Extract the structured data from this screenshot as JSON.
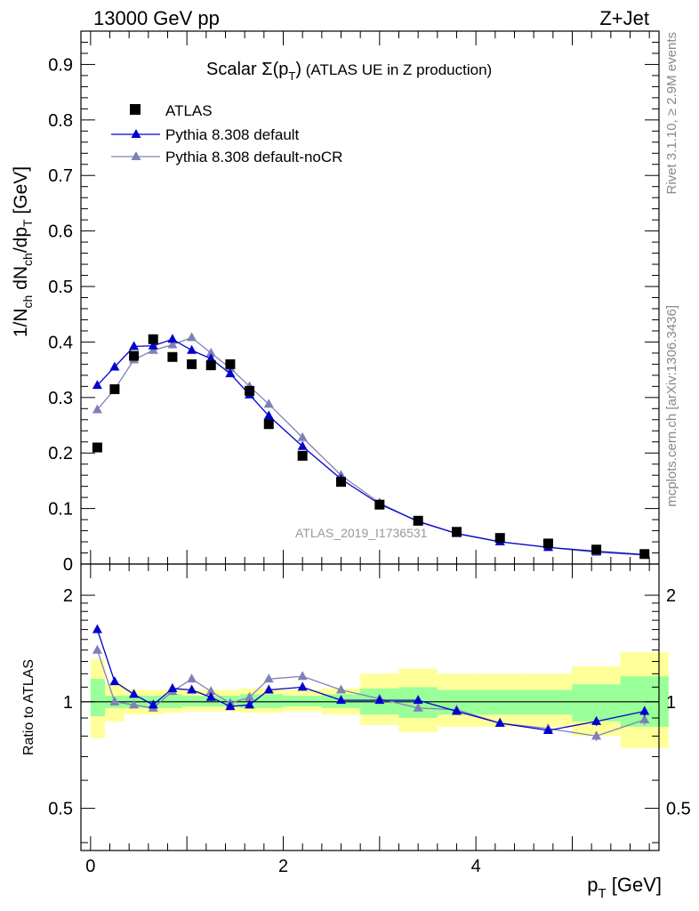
{
  "header": {
    "left": "13000 GeV pp",
    "right": "Z+Jet"
  },
  "title": {
    "prefix": "Scalar ",
    "sigma": "Σ(p",
    "sub": "T",
    "close": ")",
    "rest": " (ATLAS UE in Z production)"
  },
  "y_label_main": {
    "a": "1/N",
    "a_sub": "ch",
    "b": " dN",
    "b_sub": "ch",
    "c": "/dp",
    "c_sub": "T",
    "d": " [GeV]"
  },
  "y_label_ratio": "Ratio to ATLAS",
  "x_label": {
    "a": "p",
    "sub": "T",
    "b": " [GeV]"
  },
  "side_labels": {
    "top": "Rivet 3.1.10, ≥ 2.9M events",
    "bottom": "mcplots.cern.ch [arXiv:1306.3436]"
  },
  "watermark": "ATLAS_2019_I1736531",
  "legend": [
    {
      "label": "ATLAS",
      "marker": "square",
      "color": "#000000"
    },
    {
      "label": "Pythia 8.308 default",
      "marker": "triangle",
      "color": "#0000cc"
    },
    {
      "label": "Pythia 8.308 default-noCR",
      "marker": "triangle",
      "color": "#8080b8"
    }
  ],
  "chart_data": {
    "type": "line",
    "x_range": [
      -0.1,
      5.9
    ],
    "main": {
      "ylim": [
        0,
        0.96
      ],
      "yticks": [
        0,
        0.1,
        0.2,
        0.3,
        0.4,
        0.5,
        0.6,
        0.7,
        0.8,
        0.9
      ],
      "ytick_labels": [
        "0",
        "0.1",
        "0.2",
        "0.3",
        "0.4",
        "0.5",
        "0.6",
        "0.7",
        "0.8",
        "0.9"
      ]
    },
    "ratio": {
      "log_scale": true,
      "ylim": [
        0.38,
        2.45
      ],
      "yticks": [
        0.5,
        1,
        2
      ],
      "ytick_labels": [
        "0.5",
        "1",
        "2"
      ]
    },
    "xticks": [
      0,
      2,
      4
    ],
    "xtick_labels": [
      "0",
      "2",
      "4"
    ],
    "x": [
      0.07,
      0.25,
      0.45,
      0.65,
      0.85,
      1.05,
      1.25,
      1.45,
      1.65,
      1.85,
      2.2,
      2.6,
      3.0,
      3.4,
      3.8,
      4.25,
      4.75,
      5.25,
      5.75
    ],
    "bin_edges": [
      0.0,
      0.15,
      0.35,
      0.55,
      0.75,
      0.95,
      1.15,
      1.35,
      1.55,
      1.75,
      2.0,
      2.4,
      2.8,
      3.2,
      3.6,
      4.0,
      4.5,
      5.0,
      5.5,
      6.0
    ],
    "series": [
      {
        "name": "ATLAS",
        "color": "#000000",
        "values": [
          0.21,
          0.315,
          0.375,
          0.405,
          0.373,
          0.36,
          0.358,
          0.36,
          0.312,
          0.252,
          0.195,
          0.148,
          0.107,
          0.078,
          0.058,
          0.047,
          0.037,
          0.026,
          0.018
        ]
      },
      {
        "name": "Pythia 8.308 default",
        "color": "#0000cc",
        "values": [
          0.322,
          0.355,
          0.392,
          0.393,
          0.405,
          0.385,
          0.37,
          0.343,
          0.305,
          0.267,
          0.212,
          0.153,
          0.108,
          0.077,
          0.055,
          0.04,
          0.03,
          0.023,
          0.017
        ]
      },
      {
        "name": "Pythia 8.308 default-noCR",
        "color": "#8080b8",
        "values": [
          0.278,
          0.315,
          0.368,
          0.385,
          0.395,
          0.408,
          0.38,
          0.353,
          0.32,
          0.288,
          0.228,
          0.16,
          0.11,
          0.076,
          0.055,
          0.04,
          0.03,
          0.021,
          0.016
        ]
      }
    ],
    "ratio_series": [
      {
        "name": "Pythia 8.308 default",
        "values": [
          1.6,
          1.14,
          1.05,
          0.98,
          1.09,
          1.08,
          1.03,
          0.97,
          0.98,
          1.08,
          1.1,
          1.01,
          1.01,
          1.01,
          0.94,
          0.87,
          0.83,
          0.88,
          0.94
        ],
        "errors": [
          0,
          0,
          0,
          0,
          0,
          0,
          0,
          0,
          0,
          0,
          0,
          0,
          0,
          0,
          0,
          0,
          0.01,
          0.025,
          0.03
        ]
      },
      {
        "name": "Pythia 8.308 default-noCR",
        "values": [
          1.4,
          1.0,
          0.98,
          0.96,
          1.07,
          1.16,
          1.07,
          0.99,
          1.03,
          1.16,
          1.18,
          1.08,
          1.02,
          0.96,
          0.95,
          0.87,
          0.84,
          0.8,
          0.89
        ],
        "errors": [
          0,
          0,
          0,
          0,
          0,
          0,
          0,
          0,
          0,
          0,
          0,
          0,
          0,
          0,
          0,
          0,
          0.015,
          0.025,
          0.03
        ]
      }
    ],
    "band_stat": [
      [
        0.91,
        1.16
      ],
      [
        0.96,
        1.04
      ],
      [
        0.96,
        1.04
      ],
      [
        0.96,
        1.04
      ],
      [
        0.96,
        1.05
      ],
      [
        0.97,
        1.04
      ],
      [
        0.97,
        1.04
      ],
      [
        0.97,
        1.04
      ],
      [
        0.96,
        1.05
      ],
      [
        0.96,
        1.05
      ],
      [
        0.97,
        1.04
      ],
      [
        0.96,
        1.05
      ],
      [
        0.92,
        1.09
      ],
      [
        0.9,
        1.1
      ],
      [
        0.92,
        1.08
      ],
      [
        0.92,
        1.08
      ],
      [
        0.92,
        1.08
      ],
      [
        0.88,
        1.12
      ],
      [
        0.85,
        1.18
      ]
    ],
    "band_total": [
      [
        0.79,
        1.32
      ],
      [
        0.88,
        1.12
      ],
      [
        0.92,
        1.08
      ],
      [
        0.92,
        1.08
      ],
      [
        0.93,
        1.08
      ],
      [
        0.94,
        1.08
      ],
      [
        0.94,
        1.08
      ],
      [
        0.94,
        1.08
      ],
      [
        0.93,
        1.09
      ],
      [
        0.93,
        1.09
      ],
      [
        0.94,
        1.08
      ],
      [
        0.92,
        1.09
      ],
      [
        0.86,
        1.2
      ],
      [
        0.82,
        1.24
      ],
      [
        0.85,
        1.2
      ],
      [
        0.85,
        1.2
      ],
      [
        0.85,
        1.2
      ],
      [
        0.8,
        1.26
      ],
      [
        0.74,
        1.38
      ]
    ],
    "band_colors": {
      "total": "#ffff99",
      "stat": "#99ff99"
    }
  }
}
